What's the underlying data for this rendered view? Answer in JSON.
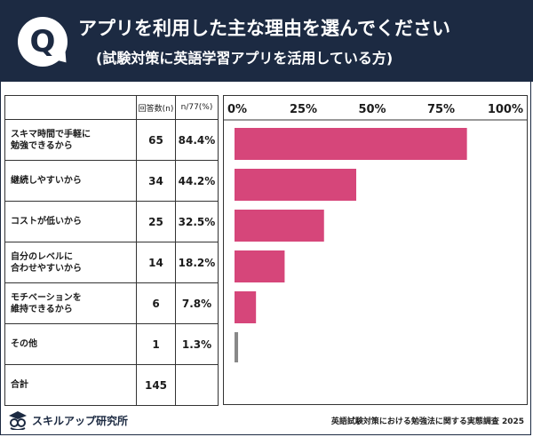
{
  "header": {
    "q_mark": "Q",
    "title": "アプリを利用した主な理由を選んでください",
    "subtitle": "(試験対策に英語学習アプリを活用している方)"
  },
  "table": {
    "col_count": "回答数(n)",
    "col_pct": "n/77(%)",
    "total_label": "合計",
    "total_count": "145"
  },
  "chart_data": {
    "type": "bar",
    "orientation": "horizontal",
    "categories": [
      [
        "スキマ時間で手軽に",
        "勉強できるから"
      ],
      [
        "継続しやすいから"
      ],
      [
        "コストが低いから"
      ],
      [
        "自分のレベルに",
        "合わせやすいから"
      ],
      [
        "モチベーションを",
        "維持できるから"
      ],
      [
        "その他"
      ]
    ],
    "counts": [
      65,
      34,
      25,
      14,
      6,
      1
    ],
    "percent_labels": [
      "84.4%",
      "44.2%",
      "32.5%",
      "18.2%",
      "7.8%",
      "1.3%"
    ],
    "values": [
      84.4,
      44.2,
      32.5,
      18.2,
      7.8,
      1.3
    ],
    "xlim": [
      0,
      100
    ],
    "ticks": [
      "0%",
      "25%",
      "50%",
      "75%",
      "100%"
    ],
    "bar_color": "#d6467a",
    "other_color": "#888888"
  },
  "footer": {
    "brand": "スキルアップ研究所",
    "source": "英語試験対策における勉強法に関する実態調査 2025"
  }
}
